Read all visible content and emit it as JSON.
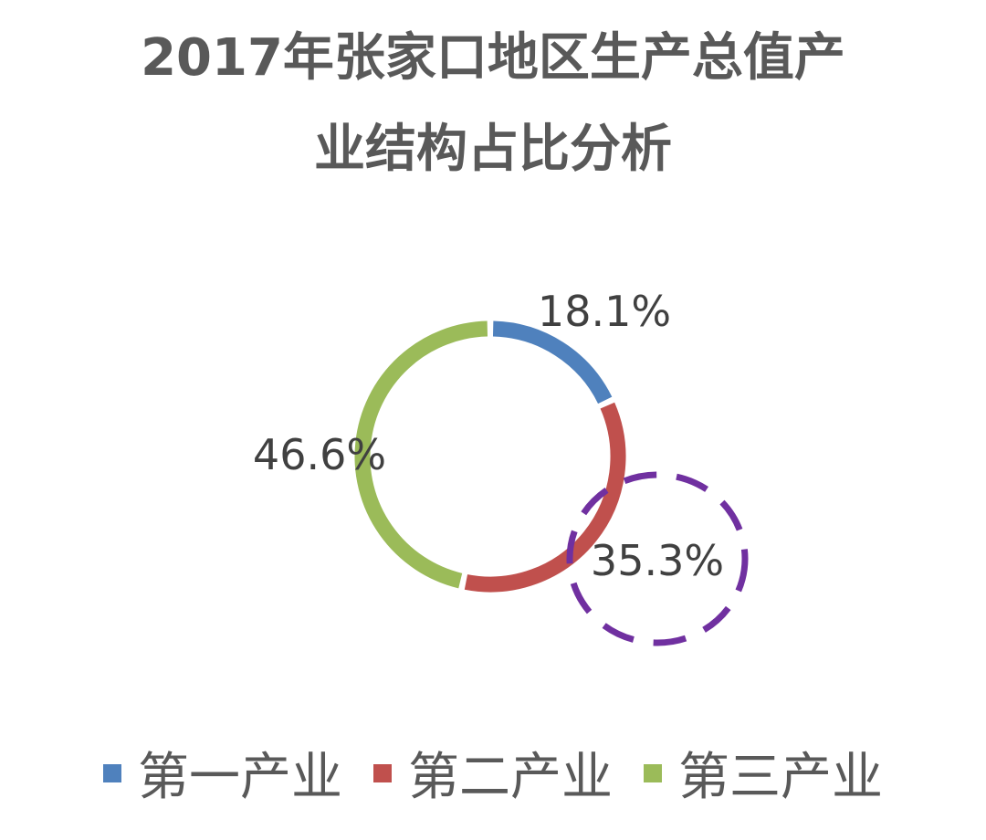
{
  "chart_data": {
    "type": "pie",
    "style": "doughnut",
    "title_lines": [
      "2017年张家口地区生产总值产",
      "业结构占比分析"
    ],
    "categories": [
      "第一产业",
      "第二产业",
      "第三产业"
    ],
    "values": [
      18.1,
      35.3,
      46.6
    ],
    "value_labels": [
      "18.1%",
      "35.3%",
      "46.6%"
    ],
    "colors": [
      "#4F81BD",
      "#C0504D",
      "#9BBB59"
    ],
    "highlighted_category": "第二产业",
    "highlight_color": "#7030A0",
    "legend_position": "bottom"
  }
}
